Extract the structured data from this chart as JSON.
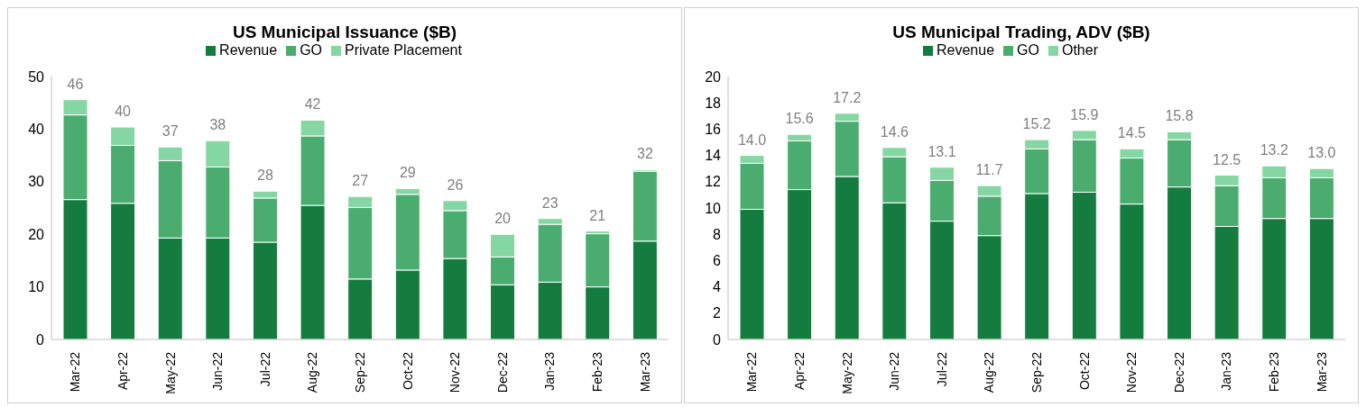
{
  "chart_data": [
    {
      "type": "bar",
      "title": "US Municipal Issuance ($B)",
      "stacked": true,
      "legend": "top",
      "categories": [
        "Mar-22",
        "Apr-22",
        "May-22",
        "Jun-22",
        "Jul-22",
        "Aug-22",
        "Sep-22",
        "Oct-22",
        "Nov-22",
        "Dec-22",
        "Jan-23",
        "Feb-23",
        "Mar-23"
      ],
      "series": [
        {
          "name": "Revenue",
          "color": "#137c3e",
          "values": [
            26.6,
            25.9,
            19.3,
            19.3,
            18.5,
            25.5,
            11.5,
            13.2,
            15.4,
            10.4,
            10.9,
            10.0,
            18.7
          ]
        },
        {
          "name": "GO",
          "color": "#4aad6f",
          "values": [
            16.1,
            11.0,
            14.7,
            13.5,
            8.4,
            13.2,
            13.6,
            14.4,
            9.1,
            5.3,
            11.0,
            10.1,
            13.3
          ]
        },
        {
          "name": "Private Placement",
          "color": "#84d6a2",
          "values": [
            2.9,
            3.5,
            2.6,
            5.0,
            1.3,
            3.0,
            2.1,
            1.1,
            1.9,
            4.3,
            1.1,
            0.5,
            0.3
          ]
        }
      ],
      "totals": [
        "46",
        "40",
        "37",
        "38",
        "28",
        "42",
        "27",
        "29",
        "26",
        "20",
        "23",
        "21",
        "32"
      ],
      "ylim": [
        0,
        50
      ],
      "yticks": [
        0,
        10,
        20,
        30,
        40,
        50
      ]
    },
    {
      "type": "bar",
      "title": "US Municipal Trading, ADV ($B)",
      "stacked": true,
      "legend": "top",
      "categories": [
        "Mar-22",
        "Apr-22",
        "May-22",
        "Jun-22",
        "Jul-22",
        "Aug-22",
        "Sep-22",
        "Oct-22",
        "Nov-22",
        "Dec-22",
        "Jan-23",
        "Feb-23",
        "Mar-23"
      ],
      "series": [
        {
          "name": "Revenue",
          "color": "#137c3e",
          "values": [
            9.9,
            11.4,
            12.4,
            10.4,
            9.0,
            7.9,
            11.1,
            11.2,
            10.3,
            11.6,
            8.6,
            9.2,
            9.2
          ]
        },
        {
          "name": "GO",
          "color": "#4aad6f",
          "values": [
            3.5,
            3.7,
            4.2,
            3.5,
            3.1,
            3.0,
            3.4,
            4.0,
            3.5,
            3.6,
            3.1,
            3.1,
            3.1
          ]
        },
        {
          "name": "Other",
          "color": "#84d6a2",
          "values": [
            0.6,
            0.5,
            0.6,
            0.7,
            1.0,
            0.8,
            0.7,
            0.7,
            0.7,
            0.6,
            0.8,
            0.9,
            0.7
          ]
        }
      ],
      "totals": [
        "14.0",
        "15.6",
        "17.2",
        "14.6",
        "13.1",
        "11.7",
        "15.2",
        "15.9",
        "14.5",
        "15.8",
        "12.5",
        "13.2",
        "13.0"
      ],
      "ylim": [
        0,
        20
      ],
      "yticks": [
        0,
        2,
        4,
        6,
        8,
        10,
        12,
        14,
        16,
        18,
        20
      ]
    }
  ]
}
